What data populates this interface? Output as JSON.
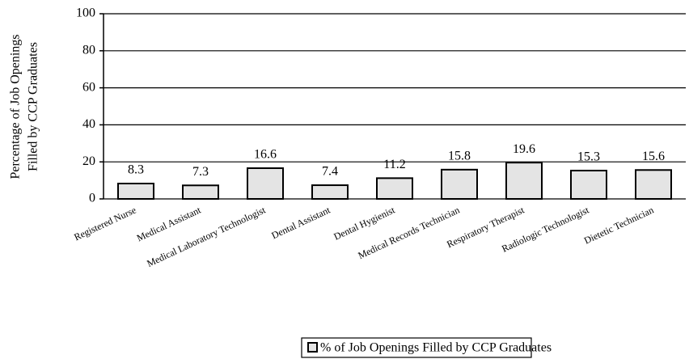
{
  "chart_data": {
    "type": "bar",
    "ylabel": [
      "Percentage of Job Openings",
      "Filled by CCP Graduates"
    ],
    "categories": [
      "Registered Nurse",
      "Medical Assistant",
      "Medical Laboratory Technologist",
      "Dental Assistant",
      "Dental Hygienist",
      "Medical Records Technician",
      "Respiratory Therapist",
      "Radiologic Technologist",
      "Dietetic Technician"
    ],
    "series": [
      {
        "name": "% of Job Openings Filled by CCP Graduates",
        "color": "#e4e4e4",
        "values": [
          8.3,
          7.3,
          16.6,
          7.4,
          11.2,
          15.8,
          19.6,
          15.3,
          15.6
        ]
      }
    ],
    "ylim": [
      0,
      100
    ],
    "yticks": [
      0,
      20,
      40,
      60,
      80,
      100
    ],
    "grid": true,
    "legend": "bottom"
  }
}
